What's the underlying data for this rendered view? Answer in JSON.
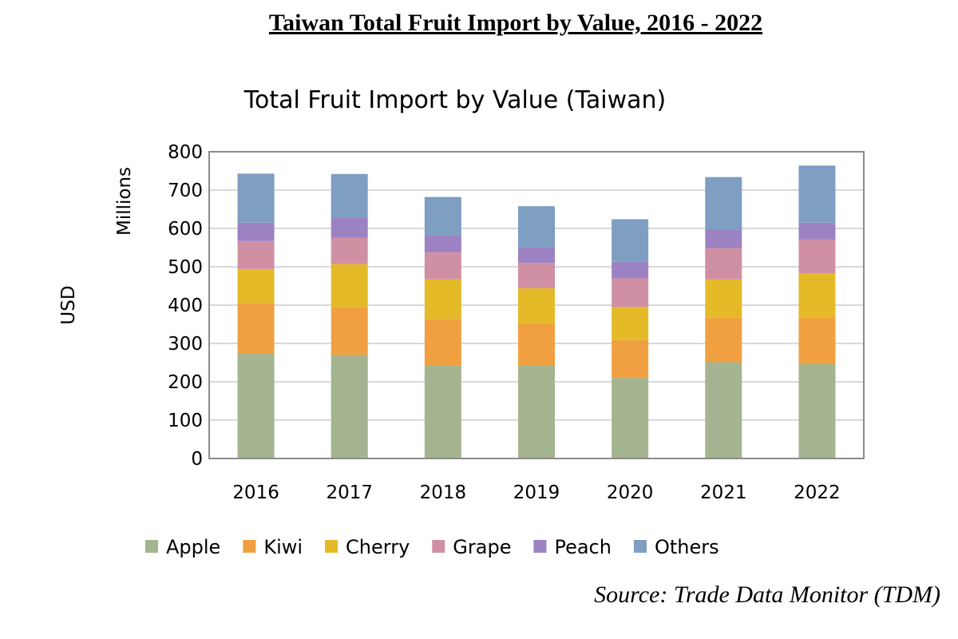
{
  "page_title": "Taiwan Total Fruit Import by Value, 2016 - 2022",
  "source": "Source: Trade Data Monitor (TDM)",
  "chart_data": {
    "type": "bar",
    "stacked": true,
    "title": "Total Fruit Import by Value (Taiwan)",
    "ylabel": "USD",
    "yunit_label": "Millions",
    "xlabel": "",
    "ylim": [
      0,
      800
    ],
    "yticks": [
      0,
      100,
      200,
      300,
      400,
      500,
      600,
      700,
      800
    ],
    "grid": true,
    "legend_position": "bottom",
    "categories": [
      "2016",
      "2017",
      "2018",
      "2019",
      "2020",
      "2021",
      "2022"
    ],
    "series": [
      {
        "name": "Apple",
        "color": "#a4b490",
        "values": [
          274,
          270,
          243,
          243,
          210,
          251,
          246
        ]
      },
      {
        "name": "Kiwi",
        "color": "#f0a040",
        "values": [
          132,
          125,
          121,
          108,
          99,
          116,
          121
        ]
      },
      {
        "name": "Cherry",
        "color": "#e4ba28",
        "values": [
          88,
          112,
          103,
          93,
          86,
          100,
          116
        ]
      },
      {
        "name": "Grape",
        "color": "#d090a4",
        "values": [
          73,
          69,
          71,
          66,
          75,
          82,
          88
        ]
      },
      {
        "name": "Peach",
        "color": "#9c82c2",
        "values": [
          48,
          52,
          43,
          41,
          43,
          48,
          44
        ]
      },
      {
        "name": "Others",
        "color": "#7e9ec2",
        "values": [
          128,
          114,
          101,
          107,
          111,
          137,
          149
        ]
      }
    ]
  }
}
